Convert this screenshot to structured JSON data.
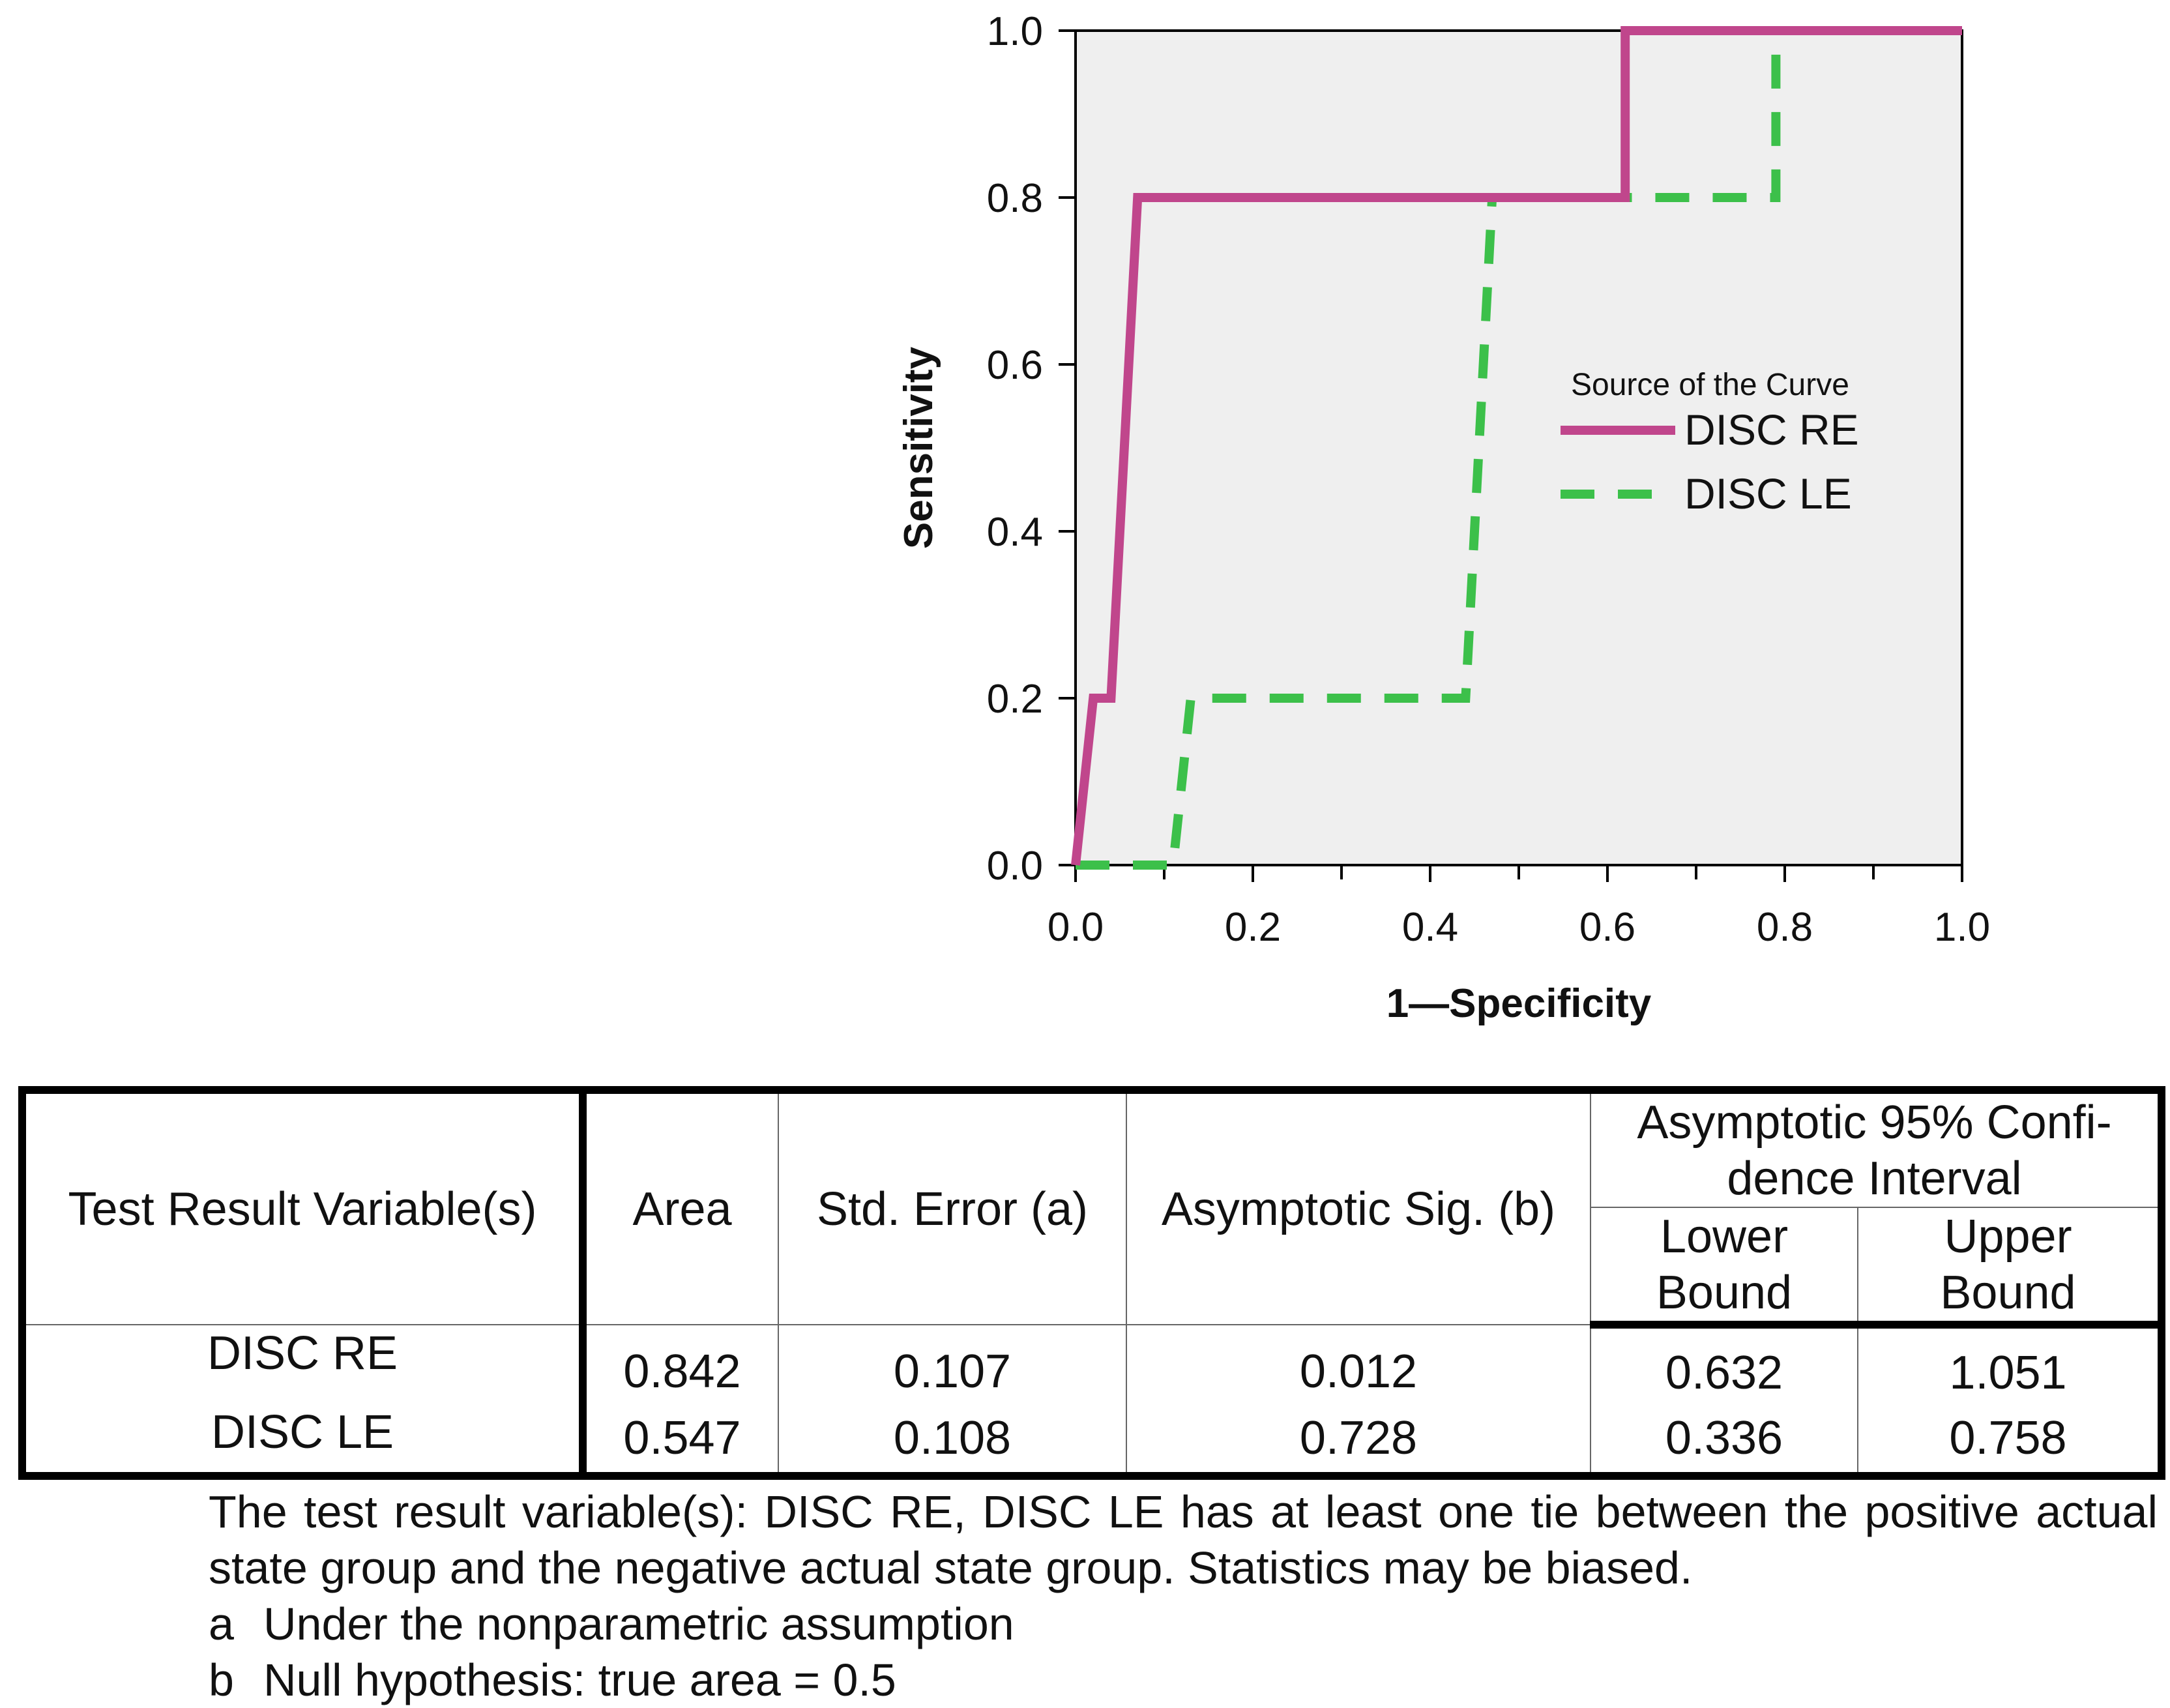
{
  "chart_data": {
    "type": "line",
    "title": "",
    "xlabel": "1—Specificity",
    "ylabel": "Sensitivity",
    "xlim": [
      0.0,
      1.0
    ],
    "ylim": [
      0.0,
      1.0
    ],
    "xticks": [
      "0.0",
      "0.2",
      "0.4",
      "0.6",
      "0.8",
      "1.0"
    ],
    "yticks": [
      "0.0",
      "0.2",
      "0.4",
      "0.6",
      "0.8",
      "1.0"
    ],
    "grid": false,
    "legend": {
      "title": "Source of the Curve",
      "placement": "center-right"
    },
    "series": [
      {
        "name": "DISC RE",
        "color": "#C0468C",
        "style": "solid",
        "x": [
          0.0,
          0.02,
          0.04,
          0.07,
          0.62,
          0.62,
          1.0
        ],
        "y": [
          0.0,
          0.2,
          0.2,
          0.8,
          0.8,
          1.0,
          1.0
        ]
      },
      {
        "name": "DISC LE",
        "color": "#3CC04A",
        "style": "dashed",
        "x": [
          0.0,
          0.11,
          0.13,
          0.44,
          0.47,
          0.79,
          0.79,
          1.0
        ],
        "y": [
          0.0,
          0.0,
          0.2,
          0.2,
          0.8,
          0.8,
          1.0,
          1.0
        ]
      }
    ],
    "colors": {
      "plot_background": "#EFEFEF"
    }
  },
  "table": {
    "headers": {
      "variable": "Test Result Variable(s)",
      "area": "Area",
      "std_error": "Std. Error (a)",
      "sig": "Asymptotic Sig. (b)",
      "ci": "Asymptotic 95% Confi-dence Interval",
      "lower": "Lower Bound",
      "upper": "Upper Bound"
    },
    "rows": [
      {
        "variable": "DISC RE",
        "area": "0.842",
        "std_error": "0.107",
        "sig": "0.012",
        "lower": "0.632",
        "upper": "1.051"
      },
      {
        "variable": "DISC LE",
        "area": "0.547",
        "std_error": "0.108",
        "sig": "0.728",
        "lower": "0.336",
        "upper": "0.758"
      }
    ]
  },
  "notes": {
    "tie_warning": "The test result variable(s): DISC RE, DISC LE has at least one tie between the positive actual state group and the negative actual state group. Statistics may be biased.",
    "footnotes": [
      {
        "key": "a",
        "text": "Under the nonparametric assumption"
      },
      {
        "key": "b",
        "text": "Null hypothesis: true area = 0.5"
      }
    ]
  }
}
